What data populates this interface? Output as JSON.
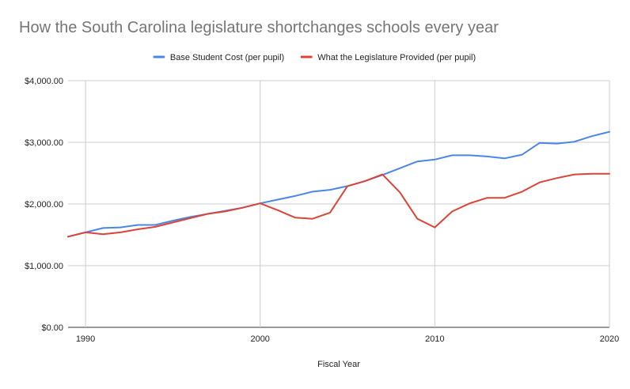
{
  "chart_data": {
    "type": "line",
    "title": "How the South Carolina legislature shortchanges schools every year",
    "xlabel": "Fiscal Year",
    "ylabel": "",
    "xlim": [
      1989,
      2020
    ],
    "ylim": [
      0,
      4000
    ],
    "x_ticks": [
      "1990",
      "2000",
      "2010",
      "2020"
    ],
    "y_ticks": [
      "$0.00",
      "$1,000.00",
      "$2,000.00",
      "$3,000.00",
      "$4,000.00"
    ],
    "grid": true,
    "legend_position": "top",
    "x": [
      1989,
      1990,
      1991,
      1992,
      1993,
      1994,
      1995,
      1996,
      1997,
      1998,
      1999,
      2000,
      2001,
      2002,
      2003,
      2004,
      2005,
      2006,
      2007,
      2008,
      2009,
      2010,
      2011,
      2012,
      2013,
      2014,
      2015,
      2016,
      2017,
      2018,
      2019,
      2020
    ],
    "series": [
      {
        "name": "Base Student Cost (per pupil)",
        "color": "#4a86e8",
        "values": [
          1470,
          1540,
          1610,
          1620,
          1660,
          1660,
          1730,
          1790,
          1840,
          1890,
          1940,
          2010,
          2070,
          2130,
          2200,
          2230,
          2290,
          2370,
          2470,
          2580,
          2690,
          2720,
          2790,
          2790,
          2770,
          2740,
          2800,
          2990,
          2980,
          3010,
          3100,
          3170
        ]
      },
      {
        "name": "What the Legislature Provided (per pupil)",
        "color": "#db4437",
        "values": [
          1470,
          1540,
          1510,
          1540,
          1590,
          1630,
          1700,
          1770,
          1840,
          1880,
          1940,
          2010,
          1900,
          1780,
          1760,
          1860,
          2290,
          2370,
          2480,
          2190,
          1760,
          1620,
          1880,
          2010,
          2100,
          2100,
          2200,
          2350,
          2420,
          2480,
          2490,
          2490
        ]
      }
    ]
  }
}
